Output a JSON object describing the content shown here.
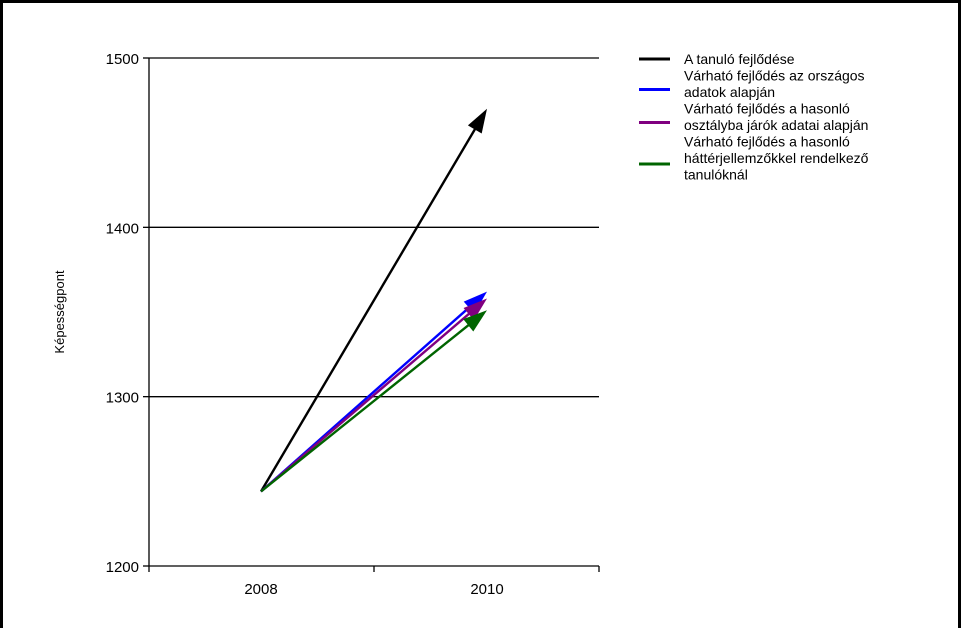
{
  "chart_data": {
    "type": "line",
    "xlabel": "",
    "ylabel": "Képességpont",
    "ylim": [
      1200,
      1500
    ],
    "yticks": [
      1200,
      1300,
      1400,
      1500
    ],
    "xticks": [
      "2008",
      "2010"
    ],
    "grid": "horizontal",
    "legend_position": "right",
    "series": [
      {
        "name": "A tanuló fejlődése",
        "color": "#000000",
        "x": [
          "2008",
          "2010"
        ],
        "y": [
          1244,
          1470
        ]
      },
      {
        "name": "Várható fejlődés az országos adatok alapján",
        "color": "#0000ff",
        "x": [
          "2008",
          "2010"
        ],
        "y": [
          1244,
          1362
        ]
      },
      {
        "name": "Várható fejlődés a hasonló osztályba járók adatai alapján",
        "color": "#800080",
        "x": [
          "2008",
          "2010"
        ],
        "y": [
          1244,
          1358
        ]
      },
      {
        "name": "Várható fejlődés a hasonló háttérjellemzőkkel rendelkező tanulóknál",
        "color": "#006400",
        "x": [
          "2008",
          "2010"
        ],
        "y": [
          1244,
          1351
        ]
      }
    ]
  },
  "legend_lines": [
    [
      "A tanuló fejlődése"
    ],
    [
      "Várható fejlődés az országos",
      "adatok alapján"
    ],
    [
      "Várható fejlődés a hasonló",
      "osztályba járók adatai alapján"
    ],
    [
      "Várható fejlődés a hasonló",
      "háttérjellemzőkkel rendelkező",
      "tanulóknál"
    ]
  ]
}
